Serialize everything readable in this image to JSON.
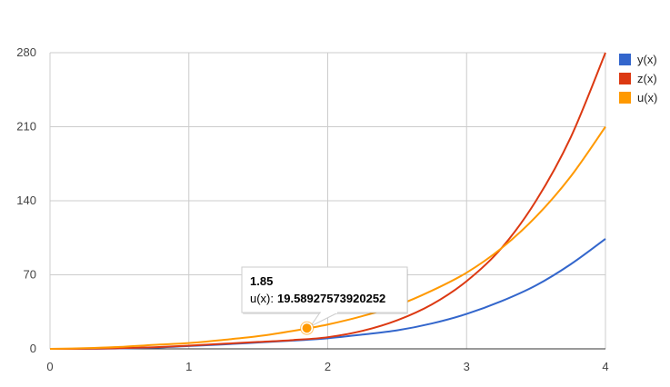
{
  "chart_data": {
    "type": "line",
    "title": "",
    "xlabel": "",
    "ylabel": "",
    "xlim": [
      0,
      4
    ],
    "ylim": [
      0,
      280
    ],
    "x_ticks": [
      0,
      1,
      2,
      3,
      4
    ],
    "y_ticks": [
      0,
      70,
      140,
      210,
      280
    ],
    "x_tick_labels": [
      "0",
      "1",
      "2",
      "3",
      "4"
    ],
    "y_tick_labels": [
      "0",
      "70",
      "140",
      "210",
      "280"
    ],
    "grid": true,
    "legend_position": "right",
    "series": [
      {
        "name": "y(x)",
        "color": "#3366cc",
        "x": [
          0,
          0.25,
          0.5,
          0.75,
          1,
          1.25,
          1.5,
          1.75,
          2,
          2.25,
          2.5,
          2.75,
          3,
          3.25,
          3.5,
          3.75,
          4
        ],
        "y": [
          0,
          0.05,
          0.4,
          1.2,
          2.7,
          4.2,
          6.0,
          7.8,
          10.0,
          13.5,
          17.5,
          24.0,
          33.0,
          45.0,
          60.0,
          80.0,
          104.0
        ]
      },
      {
        "name": "z(x)",
        "color": "#dc3912",
        "x": [
          0,
          0.25,
          0.5,
          0.75,
          1,
          1.25,
          1.5,
          1.75,
          2,
          2.25,
          2.5,
          2.75,
          3,
          3.25,
          3.5,
          3.75,
          4
        ],
        "y": [
          0,
          0.1,
          0.6,
          1.5,
          3.0,
          4.8,
          6.5,
          8.3,
          11.0,
          17.0,
          27.0,
          42.0,
          64.0,
          95.0,
          140.0,
          200.0,
          280.0
        ]
      },
      {
        "name": "u(x)",
        "color": "#ff9900",
        "x": [
          0,
          0.25,
          0.5,
          0.75,
          1,
          1.25,
          1.5,
          1.75,
          2,
          2.25,
          2.5,
          2.75,
          3,
          3.25,
          3.5,
          3.75,
          4
        ],
        "y": [
          0,
          0.6,
          1.8,
          3.8,
          5.5,
          8.5,
          12.0,
          17.0,
          23.0,
          31.0,
          41.0,
          55.0,
          72.0,
          95.0,
          125.0,
          163.0,
          210.0
        ]
      }
    ],
    "tooltip": {
      "series": "u(x)",
      "x": 1.85,
      "y": 19.58927573920252,
      "x_label": "1.85",
      "series_label": "u(x):",
      "value_label": "19.58927573920252"
    }
  }
}
